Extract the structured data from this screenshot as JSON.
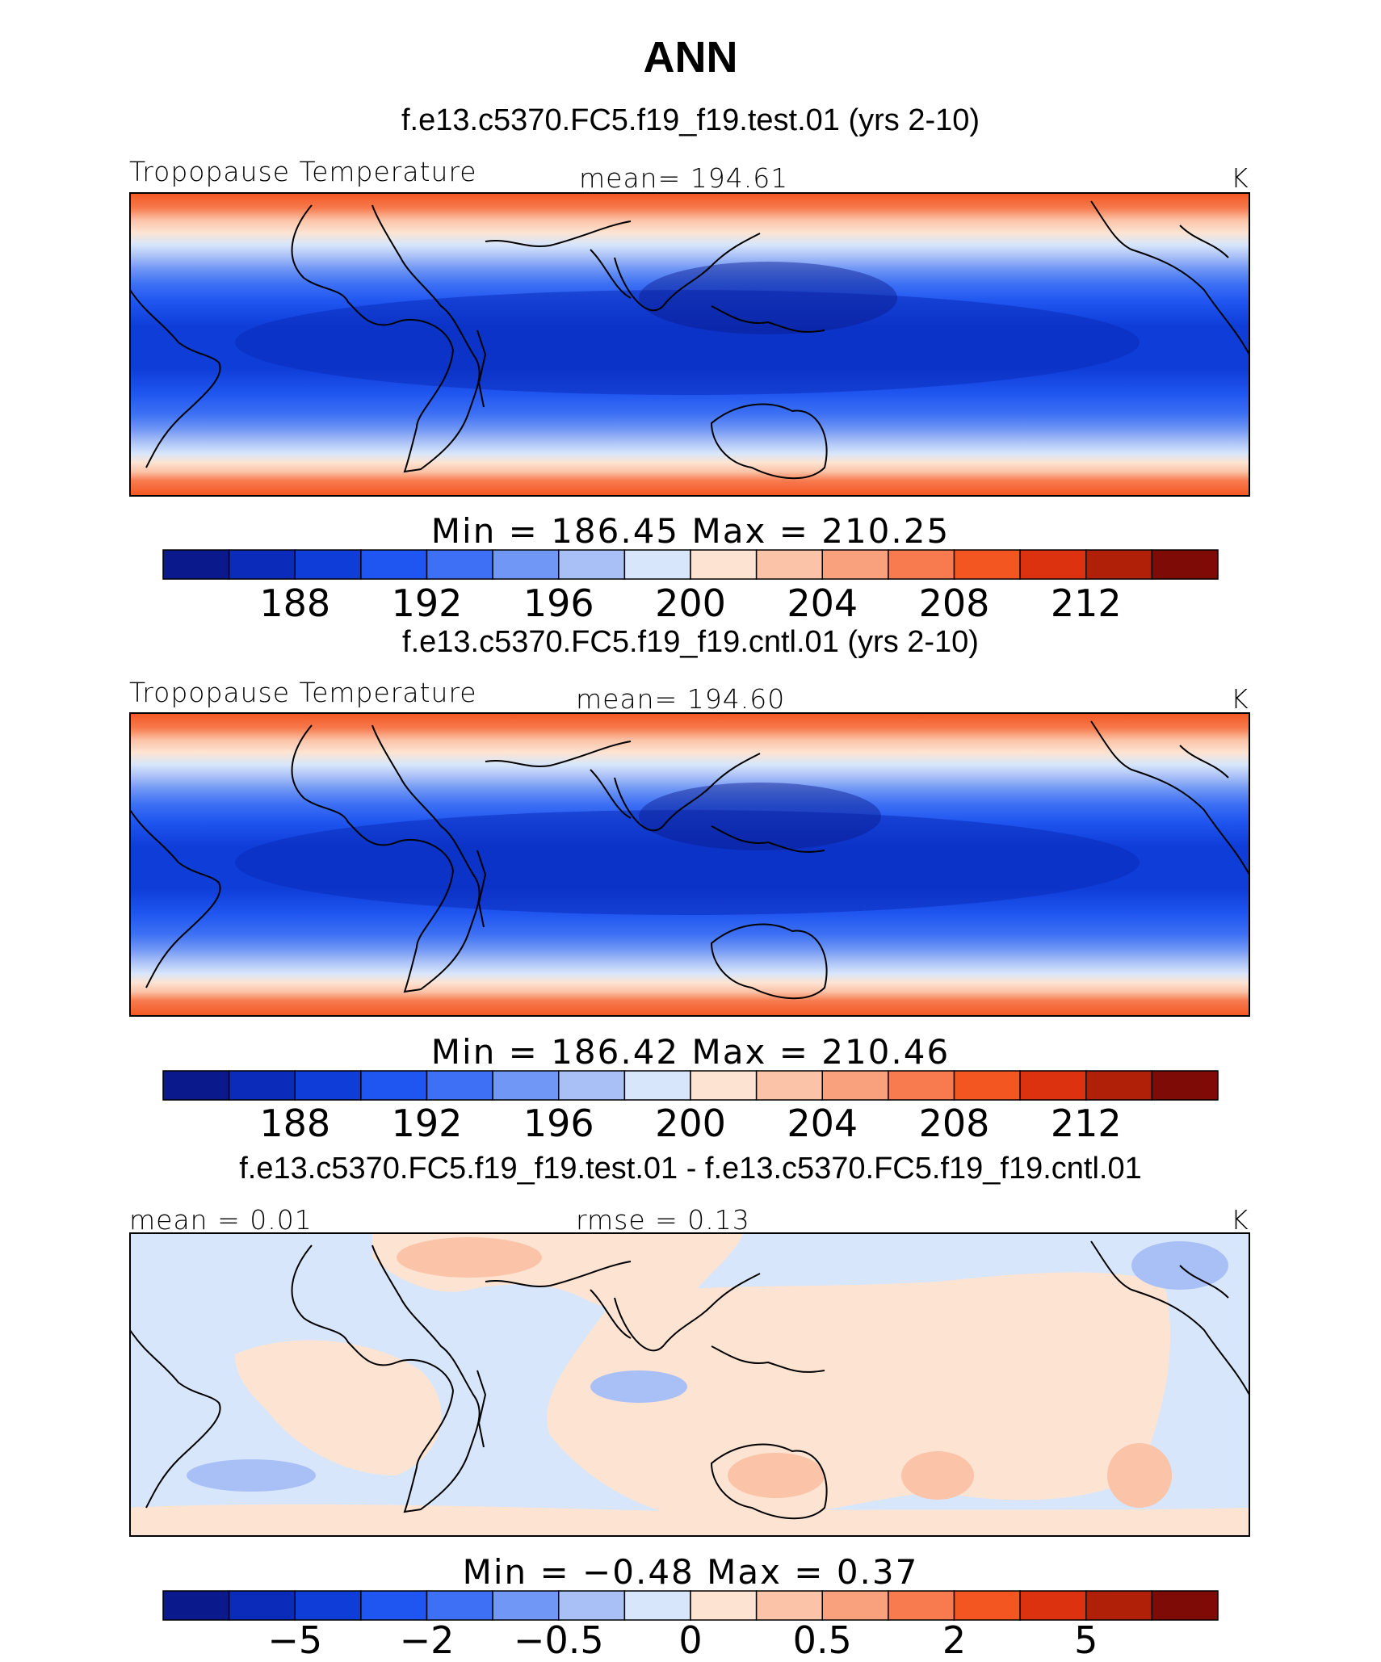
{
  "figure": {
    "title": "ANN"
  },
  "chart_data": [
    {
      "type": "heatmap",
      "title": "f.e13.c5370.FC5.f19_f19.test.01 (yrs 2-10)",
      "variable": "Tropopause Temperature",
      "mean_label": "mean=  194.61",
      "units": "K",
      "minmax_label": "Min  =  186.45  Max  =  210.25",
      "colorbar": {
        "colors": [
          "#0a1a8c",
          "#0b2cba",
          "#0f3dd8",
          "#1f55f0",
          "#3d70f4",
          "#7097f5",
          "#a9c0f7",
          "#d7e6fb",
          "#fde4d2",
          "#fbc3a8",
          "#f9a07c",
          "#f77b4f",
          "#f45621",
          "#dc3210",
          "#b02009",
          "#7e0b05"
        ],
        "tick_labels": [
          "188",
          "192",
          "196",
          "200",
          "204",
          "208",
          "212"
        ],
        "tick_values": [
          188,
          192,
          196,
          200,
          204,
          208,
          212
        ],
        "levels": [
          186,
          187,
          188,
          190,
          192,
          194,
          196,
          198,
          200,
          202,
          204,
          206,
          208,
          210,
          212,
          214,
          216
        ]
      },
      "field_summary": {
        "min": 186.45,
        "max": 210.25,
        "mean": 194.61,
        "description_zonal_band": "cold tropical minimum, warm high latitudes"
      }
    },
    {
      "type": "heatmap",
      "title": "f.e13.c5370.FC5.f19_f19.cntl.01 (yrs 2-10)",
      "variable": "Tropopause Temperature",
      "mean_label": "mean=  194.60",
      "units": "K",
      "minmax_label": "Min  =  186.42  Max  =  210.46",
      "colorbar": {
        "colors": [
          "#0a1a8c",
          "#0b2cba",
          "#0f3dd8",
          "#1f55f0",
          "#3d70f4",
          "#7097f5",
          "#a9c0f7",
          "#d7e6fb",
          "#fde4d2",
          "#fbc3a8",
          "#f9a07c",
          "#f77b4f",
          "#f45621",
          "#dc3210",
          "#b02009",
          "#7e0b05"
        ],
        "tick_labels": [
          "188",
          "192",
          "196",
          "200",
          "204",
          "208",
          "212"
        ],
        "tick_values": [
          188,
          192,
          196,
          200,
          204,
          208,
          212
        ]
      },
      "field_summary": {
        "min": 186.42,
        "max": 210.46,
        "mean": 194.6
      }
    },
    {
      "type": "heatmap",
      "title": "f.e13.c5370.FC5.f19_f19.test.01 - f.e13.c5370.FC5.f19_f19.cntl.01",
      "mean_label": "mean =    0.01",
      "rmse_label": "rmse =    0.13",
      "units": "K",
      "minmax_label": "Min  =   −0.48  Max  =    0.37",
      "colorbar": {
        "colors": [
          "#0a1a8c",
          "#0b2cba",
          "#0f3dd8",
          "#1f55f0",
          "#3d70f4",
          "#7097f5",
          "#a9c0f7",
          "#d7e6fb",
          "#fde4d2",
          "#fbc3a8",
          "#f9a07c",
          "#f77b4f",
          "#f45621",
          "#dc3210",
          "#b02009",
          "#7e0b05"
        ],
        "tick_labels": [
          "−5",
          "−2",
          "−0.5",
          "0",
          "0.5",
          "2",
          "5"
        ],
        "tick_values": [
          -5,
          -2,
          -0.5,
          0,
          0.5,
          2,
          5
        ]
      },
      "field_summary": {
        "min": -0.48,
        "max": 0.37,
        "mean": 0.01,
        "rmse": 0.13
      }
    }
  ]
}
